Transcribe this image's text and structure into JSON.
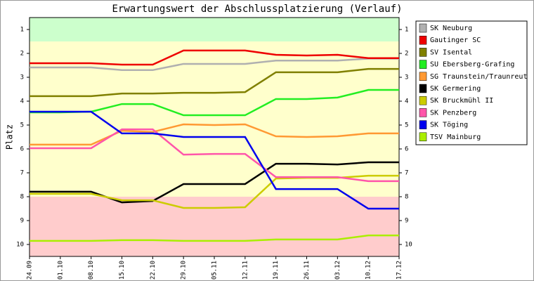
{
  "chart_data": {
    "type": "line",
    "title": "Erwartungswert der Abschlussplatzierung (Verlauf)",
    "y_label": "Platz",
    "categories": [
      "24.09",
      "01.10",
      "08.10",
      "15.10",
      "22.10",
      "29.10",
      "05.11",
      "12.11",
      "19.11",
      "26.11",
      "03.12",
      "10.12",
      "17.12"
    ],
    "ylim": [
      0.5,
      10.5
    ],
    "y_inverted": true,
    "yticks": [
      1,
      2,
      3,
      4,
      5,
      6,
      7,
      8,
      9,
      10
    ],
    "bands": [
      {
        "from": 0.5,
        "to": 1.5,
        "color": "#ccffcc"
      },
      {
        "from": 1.5,
        "to": 8,
        "color": "#ffffcc"
      },
      {
        "from": 8,
        "to": 10.5,
        "color": "#ffcccc"
      }
    ],
    "series": [
      {
        "name": "SK Neuburg",
        "color": "#b0b0b0",
        "values": [
          2.59,
          2.59,
          2.59,
          2.7,
          2.7,
          2.44,
          2.44,
          2.44,
          2.3,
          2.3,
          2.3,
          2.22,
          2.22
        ]
      },
      {
        "name": "Gautinger SC",
        "color": "#ee0000",
        "values": [
          2.41,
          2.41,
          2.41,
          2.47,
          2.47,
          1.88,
          1.88,
          1.88,
          2.06,
          2.09,
          2.06,
          2.2,
          2.2
        ]
      },
      {
        "name": "SV Isental",
        "color": "#808000",
        "values": [
          3.79,
          3.79,
          3.79,
          3.68,
          3.68,
          3.65,
          3.65,
          3.62,
          2.79,
          2.79,
          2.79,
          2.65,
          2.65
        ]
      },
      {
        "name": "SU Ebersberg-Grafing",
        "color": "#22ee22",
        "values": [
          4.47,
          4.47,
          4.44,
          4.12,
          4.12,
          4.59,
          4.59,
          4.59,
          3.91,
          3.91,
          3.85,
          3.53,
          3.53
        ]
      },
      {
        "name": "SG Traunstein/Traunreut",
        "color": "#ff9933",
        "values": [
          5.82,
          5.82,
          5.82,
          5.24,
          5.29,
          4.97,
          5.0,
          4.97,
          5.47,
          5.5,
          5.47,
          5.35,
          5.35
        ]
      },
      {
        "name": "SK Germering",
        "color": "#000000",
        "values": [
          7.79,
          7.79,
          7.79,
          8.24,
          8.18,
          7.47,
          7.47,
          7.47,
          6.62,
          6.62,
          6.65,
          6.56,
          6.56
        ]
      },
      {
        "name": "SK Bruckmühl II",
        "color": "#cccc00",
        "values": [
          7.88,
          7.88,
          7.88,
          8.15,
          8.15,
          8.47,
          8.47,
          8.44,
          7.24,
          7.21,
          7.21,
          7.12,
          7.12
        ]
      },
      {
        "name": "SK Penzberg",
        "color": "#ff55aa",
        "values": [
          5.97,
          5.97,
          5.97,
          5.18,
          5.18,
          6.24,
          6.21,
          6.21,
          7.18,
          7.18,
          7.18,
          7.35,
          7.35
        ]
      },
      {
        "name": "SK Töging",
        "color": "#0000ee",
        "values": [
          4.44,
          4.44,
          4.44,
          5.35,
          5.35,
          5.5,
          5.5,
          5.5,
          7.68,
          7.68,
          7.68,
          8.5,
          8.5
        ]
      },
      {
        "name": "TSV Mainburg",
        "color": "#aaee00",
        "values": [
          9.85,
          9.85,
          9.85,
          9.82,
          9.82,
          9.85,
          9.85,
          9.85,
          9.79,
          9.79,
          9.79,
          9.62,
          9.62
        ]
      }
    ]
  }
}
